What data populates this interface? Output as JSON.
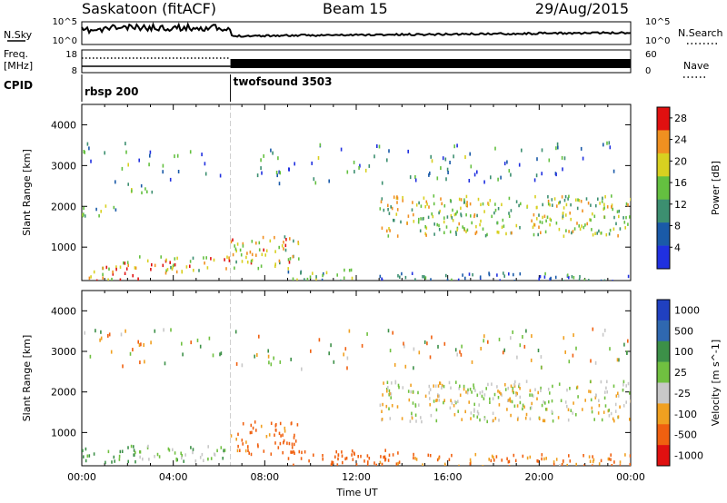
{
  "header": {
    "title": "Saskatoon (fitACF)",
    "beam": "Beam 15",
    "date": "29/Aug/2015"
  },
  "top_panels": {
    "nsky_label": "N.Sky",
    "nsky_ticks": [
      "10^5",
      "10^0"
    ],
    "nsearch_label": "N.Search",
    "nsearch_ticks": [
      "10^5",
      "10^0"
    ],
    "freq_label": "Freq.",
    "freq_unit": "[MHz]",
    "freq_ticks": [
      "18",
      "8"
    ],
    "nave_label": "Nave",
    "nave_ticks": [
      "60",
      "0"
    ],
    "cpid_label": "CPID",
    "cpid_segments": [
      {
        "label": "rbsp 200",
        "start_h": 0,
        "end_h": 6.5
      },
      {
        "label": "twofsound 3503",
        "start_h": 6.5,
        "end_h": 24
      }
    ]
  },
  "chart_data": [
    {
      "type": "heatmap",
      "title": "",
      "xlabel": "Time UT",
      "ylabel": "Slant Range [km]",
      "xlim": [
        0,
        24
      ],
      "ylim": [
        180,
        4500
      ],
      "yticks": [
        1000,
        2000,
        3000,
        4000
      ],
      "colorbar": {
        "label": "Power [dB]",
        "ticks": [
          4,
          8,
          12,
          16,
          20,
          24,
          28
        ],
        "range": [
          0,
          30
        ],
        "colors": [
          "#2030e0",
          "#1a5aa8",
          "#3c8f70",
          "#64c040",
          "#d8d020",
          "#f09020",
          "#e01010"
        ]
      },
      "regions": [
        {
          "t": [
            0.3,
            2.5
          ],
          "r": [
            200,
            700
          ],
          "value": 22
        },
        {
          "t": [
            0.0,
            1.5
          ],
          "r": [
            1800,
            2100
          ],
          "value": 12
        },
        {
          "t": [
            2.5,
            6.5
          ],
          "r": [
            400,
            800
          ],
          "value": 20
        },
        {
          "t": [
            2.0,
            3.5
          ],
          "r": [
            2350,
            2600
          ],
          "value": 14
        },
        {
          "t": [
            6.5,
            9.5
          ],
          "r": [
            500,
            1300
          ],
          "value": 19
        },
        {
          "t": [
            9.0,
            12.0
          ],
          "r": [
            200,
            500
          ],
          "value": 14
        },
        {
          "t": [
            13.0,
            24.0
          ],
          "r": [
            1300,
            2300
          ],
          "value": 17
        },
        {
          "t": [
            13.0,
            24.0
          ],
          "r": [
            200,
            400
          ],
          "value": 6
        }
      ]
    },
    {
      "type": "heatmap",
      "title": "",
      "xlabel": "Time UT",
      "ylabel": "Slant Range [km]",
      "xlim": [
        0,
        24
      ],
      "ylim": [
        180,
        4500
      ],
      "xticks": [
        "00:00",
        "04:00",
        "08:00",
        "12:00",
        "16:00",
        "20:00",
        "00:00"
      ],
      "yticks": [
        1000,
        2000,
        3000,
        4000
      ],
      "colorbar": {
        "label": "Velocity [m s^-1]",
        "ticks": [
          1000,
          500,
          100,
          25,
          -25,
          -100,
          -500,
          -1000
        ],
        "colors": [
          "#2040c0",
          "#2f68b0",
          "#3c9048",
          "#70c040",
          "#c8c8c8",
          "#f0a020",
          "#f06010",
          "#e01010"
        ]
      },
      "regions": [
        {
          "t": [
            0.0,
            2.5
          ],
          "r": [
            300,
            700
          ],
          "value": 150
        },
        {
          "t": [
            2.5,
            6.5
          ],
          "r": [
            300,
            700
          ],
          "value": 50
        },
        {
          "t": [
            6.5,
            9.5
          ],
          "r": [
            500,
            1300
          ],
          "value": -150
        },
        {
          "t": [
            9.0,
            14.0
          ],
          "r": [
            200,
            600
          ],
          "value": -200
        },
        {
          "t": [
            13.0,
            24.0
          ],
          "r": [
            1300,
            2300
          ],
          "value": 0
        },
        {
          "t": [
            13.0,
            24.0
          ],
          "r": [
            200,
            500
          ],
          "value": -100
        }
      ]
    }
  ]
}
